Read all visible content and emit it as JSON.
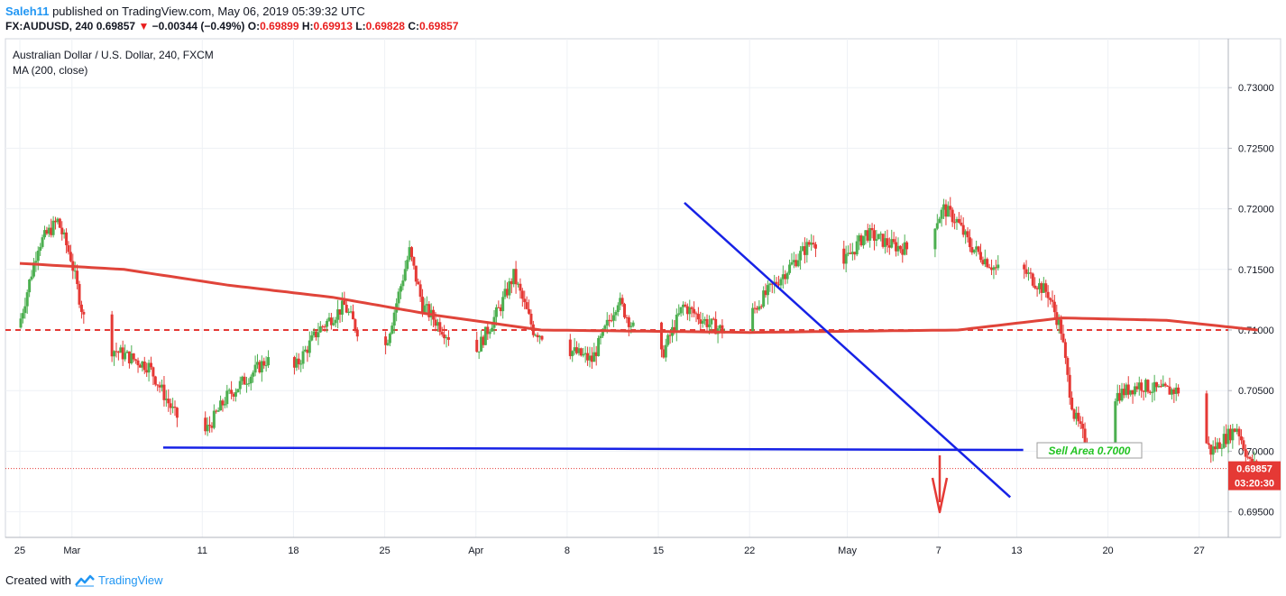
{
  "header": {
    "author": "Saleh11",
    "published_text": "published on TradingView.com, May 06, 2019 05:39:32 UTC",
    "symbol": "FX:AUDUSD, 240",
    "last": "0.69857",
    "change_arrow": "▼",
    "change": "−0.00344 (−0.49%)",
    "open_label": "O:",
    "open": "0.69899",
    "high_label": "H:",
    "high": "0.69913",
    "low_label": "L:",
    "low": "0.69828",
    "close_label": "C:",
    "close": "0.69857"
  },
  "legend": {
    "title": "Australian Dollar / U.S. Dollar, 240, FXCM",
    "indicator": "MA (200, close)"
  },
  "footer": {
    "created_with": "Created with",
    "brand": "TradingView"
  },
  "colors": {
    "up": "#4caf50",
    "down": "#e53935",
    "ma": "#e0443a",
    "trend": "#1722e6",
    "grid": "#eef1f5",
    "price_tag": "#e53935"
  },
  "chart_data": {
    "type": "candlestick",
    "title": "Australian Dollar / U.S. Dollar, 240, FXCM",
    "x_tick_labels": [
      "25",
      "Mar",
      "11",
      "18",
      "25",
      "Apr",
      "8",
      "15",
      "22",
      "May",
      "7",
      "13",
      "20",
      "27"
    ],
    "y_tick_labels": [
      "0.73000",
      "0.72500",
      "0.72000",
      "0.71500",
      "0.71000",
      "0.70500",
      "0.70000",
      "0.69500"
    ],
    "ylim": [
      0.6925,
      0.7335
    ],
    "current_price": "0.69857",
    "countdown": "03:20:30",
    "annotation": "Sell Area 0.7000",
    "horizontal_level": 0.71,
    "support_line": {
      "from": [
        "Mar 8",
        0.7003
      ],
      "to": [
        "May 13",
        0.7001
      ]
    },
    "downtrend_line": {
      "from": [
        "Apr 17",
        0.7205
      ],
      "to": [
        "May 12",
        0.6962
      ]
    },
    "price_path": [
      {
        "day": 0,
        "price": 0.7102
      },
      {
        "day": 1.5,
        "price": 0.717
      },
      {
        "day": 3,
        "price": 0.719
      },
      {
        "day": 4,
        "price": 0.716
      },
      {
        "day": 5,
        "price": 0.711
      },
      {
        "day": 7,
        "price": 0.7085
      },
      {
        "day": 10,
        "price": 0.707
      },
      {
        "day": 12,
        "price": 0.703
      },
      {
        "day": 14,
        "price": 0.701
      },
      {
        "day": 16,
        "price": 0.7045
      },
      {
        "day": 19,
        "price": 0.7075
      },
      {
        "day": 21,
        "price": 0.7065
      },
      {
        "day": 23,
        "price": 0.71
      },
      {
        "day": 25,
        "price": 0.712
      },
      {
        "day": 26,
        "price": 0.71
      },
      {
        "day": 28,
        "price": 0.708
      },
      {
        "day": 30,
        "price": 0.7165
      },
      {
        "day": 31,
        "price": 0.712
      },
      {
        "day": 33,
        "price": 0.7095
      },
      {
        "day": 35,
        "price": 0.708
      },
      {
        "day": 37,
        "price": 0.712
      },
      {
        "day": 38,
        "price": 0.7145
      },
      {
        "day": 39.5,
        "price": 0.71
      },
      {
        "day": 42,
        "price": 0.7085
      },
      {
        "day": 44,
        "price": 0.7075
      },
      {
        "day": 46,
        "price": 0.7125
      },
      {
        "day": 48,
        "price": 0.7085
      },
      {
        "day": 49,
        "price": 0.707
      },
      {
        "day": 51,
        "price": 0.712
      },
      {
        "day": 53,
        "price": 0.7105
      },
      {
        "day": 55,
        "price": 0.7095
      },
      {
        "day": 57,
        "price": 0.7125
      },
      {
        "day": 59,
        "price": 0.715
      },
      {
        "day": 61,
        "price": 0.7175
      },
      {
        "day": 63,
        "price": 0.715
      },
      {
        "day": 65,
        "price": 0.718
      },
      {
        "day": 67,
        "price": 0.717
      },
      {
        "day": 69,
        "price": 0.7165
      },
      {
        "day": 71,
        "price": 0.72
      },
      {
        "day": 72,
        "price": 0.719
      },
      {
        "day": 73,
        "price": 0.717
      },
      {
        "day": 75,
        "price": 0.715
      },
      {
        "day": 77,
        "price": 0.715
      },
      {
        "day": 79,
        "price": 0.713
      },
      {
        "day": 80,
        "price": 0.71
      },
      {
        "day": 80.5,
        "price": 0.706
      },
      {
        "day": 81,
        "price": 0.703
      },
      {
        "day": 82,
        "price": 0.7005
      },
      {
        "day": 83,
        "price": 0.701
      },
      {
        "day": 84,
        "price": 0.7045
      },
      {
        "day": 86,
        "price": 0.7055
      },
      {
        "day": 87.5,
        "price": 0.705
      },
      {
        "day": 89,
        "price": 0.705
      },
      {
        "day": 90,
        "price": 0.703
      },
      {
        "day": 91.5,
        "price": 0.7
      },
      {
        "day": 92.5,
        "price": 0.701
      },
      {
        "day": 93.5,
        "price": 0.702
      },
      {
        "day": 94.5,
        "price": 0.699
      },
      {
        "day": 95.2,
        "price": 0.6986
      }
    ],
    "ma_path": [
      {
        "day": 0,
        "price": 0.7155
      },
      {
        "day": 8,
        "price": 0.715
      },
      {
        "day": 16,
        "price": 0.7137
      },
      {
        "day": 24,
        "price": 0.7127
      },
      {
        "day": 32,
        "price": 0.7112
      },
      {
        "day": 40,
        "price": 0.71
      },
      {
        "day": 56,
        "price": 0.7098
      },
      {
        "day": 72,
        "price": 0.71
      },
      {
        "day": 80,
        "price": 0.711
      },
      {
        "day": 88,
        "price": 0.7108
      },
      {
        "day": 95,
        "price": 0.71
      }
    ]
  }
}
